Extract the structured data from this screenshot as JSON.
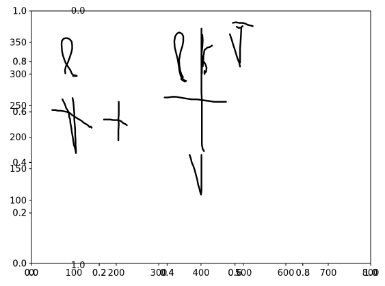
{
  "chart_data": {
    "type": "line",
    "title": "",
    "xlabel": "",
    "ylabel": "",
    "grid": false,
    "legend": "none",
    "line_color": "#000000",
    "axes": [
      {
        "name": "stroke-axes",
        "xlim": [
          0,
          800
        ],
        "ylim": [
          0,
          400
        ],
        "x_ticks": [
          "0",
          "100",
          "200",
          "300",
          "400",
          "500",
          "600",
          "700",
          "800"
        ],
        "y_ticks": [
          "100",
          "150",
          "200",
          "250",
          "300",
          "350"
        ]
      },
      {
        "name": "overlay-axes-1",
        "x_ticks": [
          "0.0",
          "0.2",
          "0.4",
          "0.6",
          "0.8",
          "1.0"
        ],
        "y_ticks": [
          "0.0",
          "0.2",
          "0.4",
          "0.6",
          "0.8",
          "1.0"
        ]
      },
      {
        "name": "overlay-axes-2",
        "x_ticks": [
          "0.0",
          "0.2",
          "0.4",
          "0.6",
          "0.8",
          "1.0"
        ],
        "y_ticks": [
          "0.0",
          "0.2",
          "0.4",
          "0.6",
          "0.8",
          "1.0"
        ]
      }
    ],
    "top_fragments": [
      "0.0",
      "1.0"
    ],
    "strokes": [
      [
        [
          73,
          260
        ],
        [
          76,
          256
        ],
        [
          79,
          252
        ],
        [
          82,
          246
        ],
        [
          85,
          243
        ],
        [
          88,
          239
        ],
        [
          89,
          232
        ],
        [
          91,
          229
        ],
        [
          92,
          222
        ],
        [
          94,
          215
        ],
        [
          95,
          209
        ],
        [
          97,
          202
        ],
        [
          98,
          197
        ],
        [
          100,
          188
        ],
        [
          102,
          184
        ],
        [
          104,
          179
        ],
        [
          105,
          175
        ]
      ],
      [
        [
          105,
          175
        ],
        [
          105,
          181
        ],
        [
          104,
          188
        ],
        [
          104,
          196
        ],
        [
          103,
          204
        ],
        [
          103,
          212
        ],
        [
          102,
          221
        ],
        [
          101,
          229
        ],
        [
          101,
          238
        ],
        [
          100,
          246
        ],
        [
          99,
          254
        ],
        [
          98,
          258
        ],
        [
          97,
          262
        ]
      ],
      [
        [
          49,
          243
        ],
        [
          57,
          243
        ],
        [
          62,
          242
        ],
        [
          69,
          242
        ],
        [
          77,
          241
        ],
        [
          84,
          240
        ],
        [
          91,
          238
        ],
        [
          96,
          235
        ],
        [
          103,
          232
        ],
        [
          110,
          229
        ],
        [
          118,
          226
        ],
        [
          123,
          223
        ],
        [
          128,
          221
        ],
        [
          133,
          219
        ],
        [
          137,
          216
        ],
        [
          140,
          217
        ],
        [
          142,
          215
        ]
      ],
      [
        [
          98,
          297
        ],
        [
          103,
          297
        ],
        [
          107,
          297
        ],
        [
          104,
          298
        ],
        [
          99,
          298
        ],
        [
          95,
          301
        ],
        [
          92,
          306
        ],
        [
          87,
          311
        ],
        [
          81,
          317
        ],
        [
          78,
          322
        ],
        [
          74,
          330
        ],
        [
          72,
          337
        ],
        [
          71,
          348
        ],
        [
          72,
          353
        ],
        [
          76,
          356
        ],
        [
          80,
          357
        ],
        [
          84,
          357
        ],
        [
          88,
          356
        ],
        [
          92,
          354
        ],
        [
          95,
          351
        ],
        [
          96,
          346
        ],
        [
          96,
          340
        ],
        [
          94,
          334
        ],
        [
          90,
          326
        ],
        [
          85,
          317
        ],
        [
          81,
          312
        ],
        [
          79,
          306
        ],
        [
          80,
          301
        ]
      ],
      [
        [
          171,
          228
        ],
        [
          179,
          228
        ],
        [
          186,
          228
        ],
        [
          193,
          227
        ],
        [
          200,
          227
        ],
        [
          206,
          227
        ],
        [
          212,
          225
        ],
        [
          217,
          222
        ],
        [
          221,
          221
        ],
        [
          225,
          219
        ]
      ],
      [
        [
          206,
          256
        ],
        [
          206,
          245
        ],
        [
          206,
          236
        ],
        [
          205,
          229
        ],
        [
          206,
          220
        ],
        [
          205,
          211
        ],
        [
          205,
          202
        ],
        [
          205,
          195
        ]
      ],
      [
        [
          314,
          263
        ],
        [
          322,
          263
        ],
        [
          331,
          264
        ],
        [
          341,
          264
        ],
        [
          350,
          263
        ],
        [
          358,
          262
        ],
        [
          367,
          261
        ],
        [
          378,
          260
        ],
        [
          390,
          260
        ],
        [
          400,
          259
        ],
        [
          411,
          258
        ],
        [
          422,
          257
        ],
        [
          431,
          256
        ],
        [
          441,
          256
        ],
        [
          451,
          256
        ],
        [
          459,
          256
        ]
      ],
      [
        [
          373,
          172
        ],
        [
          376,
          166
        ],
        [
          378,
          160
        ],
        [
          382,
          154
        ],
        [
          385,
          148
        ],
        [
          388,
          140
        ],
        [
          391,
          133
        ],
        [
          393,
          125
        ],
        [
          396,
          119
        ],
        [
          398,
          113
        ],
        [
          400,
          109
        ],
        [
          401,
          116
        ],
        [
          401,
          125
        ],
        [
          401,
          133
        ],
        [
          401,
          142
        ],
        [
          401,
          151
        ],
        [
          401,
          160
        ],
        [
          401,
          168
        ],
        [
          401,
          172
        ]
      ],
      [
        [
          362,
          288
        ],
        [
          357,
          290
        ],
        [
          353,
          292
        ],
        [
          354,
          294
        ],
        [
          356,
          295
        ],
        [
          357,
          294
        ],
        [
          357,
          296
        ],
        [
          354,
          299
        ],
        [
          351,
          305
        ],
        [
          349,
          313
        ],
        [
          348,
          322
        ],
        [
          350,
          329
        ],
        [
          352,
          336
        ],
        [
          356,
          344
        ],
        [
          358,
          352
        ],
        [
          358,
          360
        ],
        [
          355,
          364
        ],
        [
          348,
          366
        ],
        [
          343,
          364
        ],
        [
          339,
          360
        ],
        [
          337,
          352
        ],
        [
          338,
          342
        ],
        [
          341,
          334
        ],
        [
          345,
          323
        ],
        [
          347,
          315
        ],
        [
          349,
          305
        ],
        [
          352,
          297
        ],
        [
          357,
          292
        ],
        [
          361,
          290
        ],
        [
          365,
          289
        ]
      ],
      [
        [
          402,
          301
        ],
        [
          402,
          312
        ],
        [
          401,
          326
        ],
        [
          402,
          339
        ],
        [
          403,
          352
        ],
        [
          402,
          358
        ],
        [
          403,
          362
        ],
        [
          404,
          354
        ],
        [
          403,
          343
        ],
        [
          401,
          331
        ],
        [
          404,
          322
        ],
        [
          410,
          316
        ],
        [
          413,
          310
        ],
        [
          412,
          304
        ],
        [
          409,
          302
        ],
        [
          408,
          300
        ],
        [
          408,
          305
        ]
      ],
      [
        [
          404,
          312
        ],
        [
          406,
          330
        ],
        [
          408,
          338
        ],
        [
          415,
          342
        ],
        [
          421,
          343
        ],
        [
          426,
          345
        ]
      ],
      [
        [
          401,
          372
        ],
        [
          401,
          360
        ],
        [
          401,
          347
        ],
        [
          401,
          332
        ],
        [
          401,
          316
        ],
        [
          401,
          300
        ],
        [
          401,
          285
        ],
        [
          401,
          271
        ],
        [
          402,
          259
        ],
        [
          402,
          245
        ],
        [
          402,
          232
        ],
        [
          402,
          218
        ],
        [
          402,
          203
        ],
        [
          402,
          188
        ],
        [
          404,
          181
        ],
        [
          407,
          178
        ]
      ],
      [
        [
          468,
          363
        ],
        [
          473,
          353
        ],
        [
          476,
          346
        ],
        [
          480,
          338
        ],
        [
          483,
          331
        ],
        [
          487,
          323
        ],
        [
          490,
          318
        ],
        [
          492,
          312
        ]
      ],
      [
        [
          492,
          318
        ],
        [
          492,
          328
        ],
        [
          492,
          340
        ],
        [
          493,
          350
        ],
        [
          494,
          360
        ],
        [
          495,
          373
        ]
      ],
      [
        [
          475,
          381
        ],
        [
          482,
          382
        ],
        [
          490,
          381
        ],
        [
          498,
          381
        ],
        [
          504,
          380
        ],
        [
          510,
          378
        ],
        [
          516,
          377
        ],
        [
          522,
          376
        ]
      ],
      [
        [
          484,
          375
        ],
        [
          489,
          373
        ],
        [
          495,
          374
        ],
        [
          498,
          376
        ]
      ]
    ]
  }
}
